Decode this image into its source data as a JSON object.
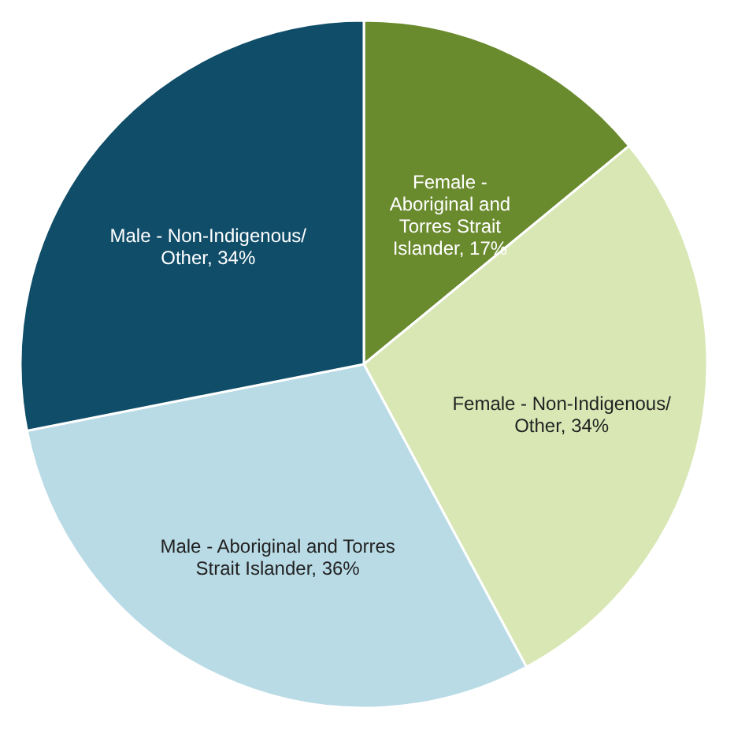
{
  "chart_data": {
    "type": "pie",
    "categories": [
      "Female - Aboriginal and Torres Strait Islander",
      "Female - Non-Indigenous/ Other",
      "Male - Aboriginal and Torres Strait Islander",
      "Male - Non-Indigenous/ Other"
    ],
    "values": [
      17,
      34,
      36,
      34
    ],
    "colors": [
      "#6a8a2e",
      "#d8e7b4",
      "#b9dbe6",
      "#0f4d69"
    ],
    "value_labels": [
      "17%",
      "34%",
      "36%",
      "34%"
    ],
    "legend": false
  }
}
